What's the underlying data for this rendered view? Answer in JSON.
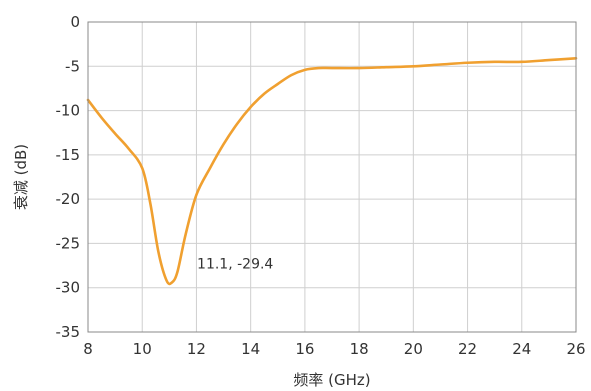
{
  "chart_data": {
    "type": "line",
    "xlabel": "频率 (GHz)",
    "ylabel": "衰减 (dB)",
    "xlim": [
      8,
      26
    ],
    "ylim": [
      -35,
      0
    ],
    "x_ticks": [
      8,
      10,
      12,
      14,
      16,
      18,
      20,
      22,
      24,
      26
    ],
    "y_ticks": [
      0,
      -5,
      -10,
      -15,
      -20,
      -25,
      -30,
      -35
    ],
    "grid": true,
    "series_color": "#f0a030",
    "series": [
      {
        "x": [
          8.0,
          8.5,
          9.0,
          9.5,
          10.0,
          10.3,
          10.6,
          10.9,
          11.1,
          11.3,
          11.6,
          12.0,
          12.5,
          13.0,
          13.5,
          14.0,
          14.5,
          15.0,
          15.5,
          16.0,
          16.5,
          17.0,
          18.0,
          19.0,
          20.0,
          21.0,
          22.0,
          23.0,
          24.0,
          25.0,
          26.0
        ],
        "y": [
          -8.8,
          -10.8,
          -12.6,
          -14.3,
          -16.5,
          -20.5,
          -26.0,
          -29.2,
          -29.4,
          -28.2,
          -24.0,
          -19.5,
          -16.5,
          -13.8,
          -11.5,
          -9.6,
          -8.1,
          -7.0,
          -6.0,
          -5.4,
          -5.2,
          -5.2,
          -5.2,
          -5.1,
          -5.0,
          -4.8,
          -4.6,
          -4.5,
          -4.5,
          -4.3,
          -4.1
        ]
      }
    ],
    "annotation": {
      "text": "11.1, -29.4",
      "x": 11.1,
      "y": -29.4
    }
  }
}
